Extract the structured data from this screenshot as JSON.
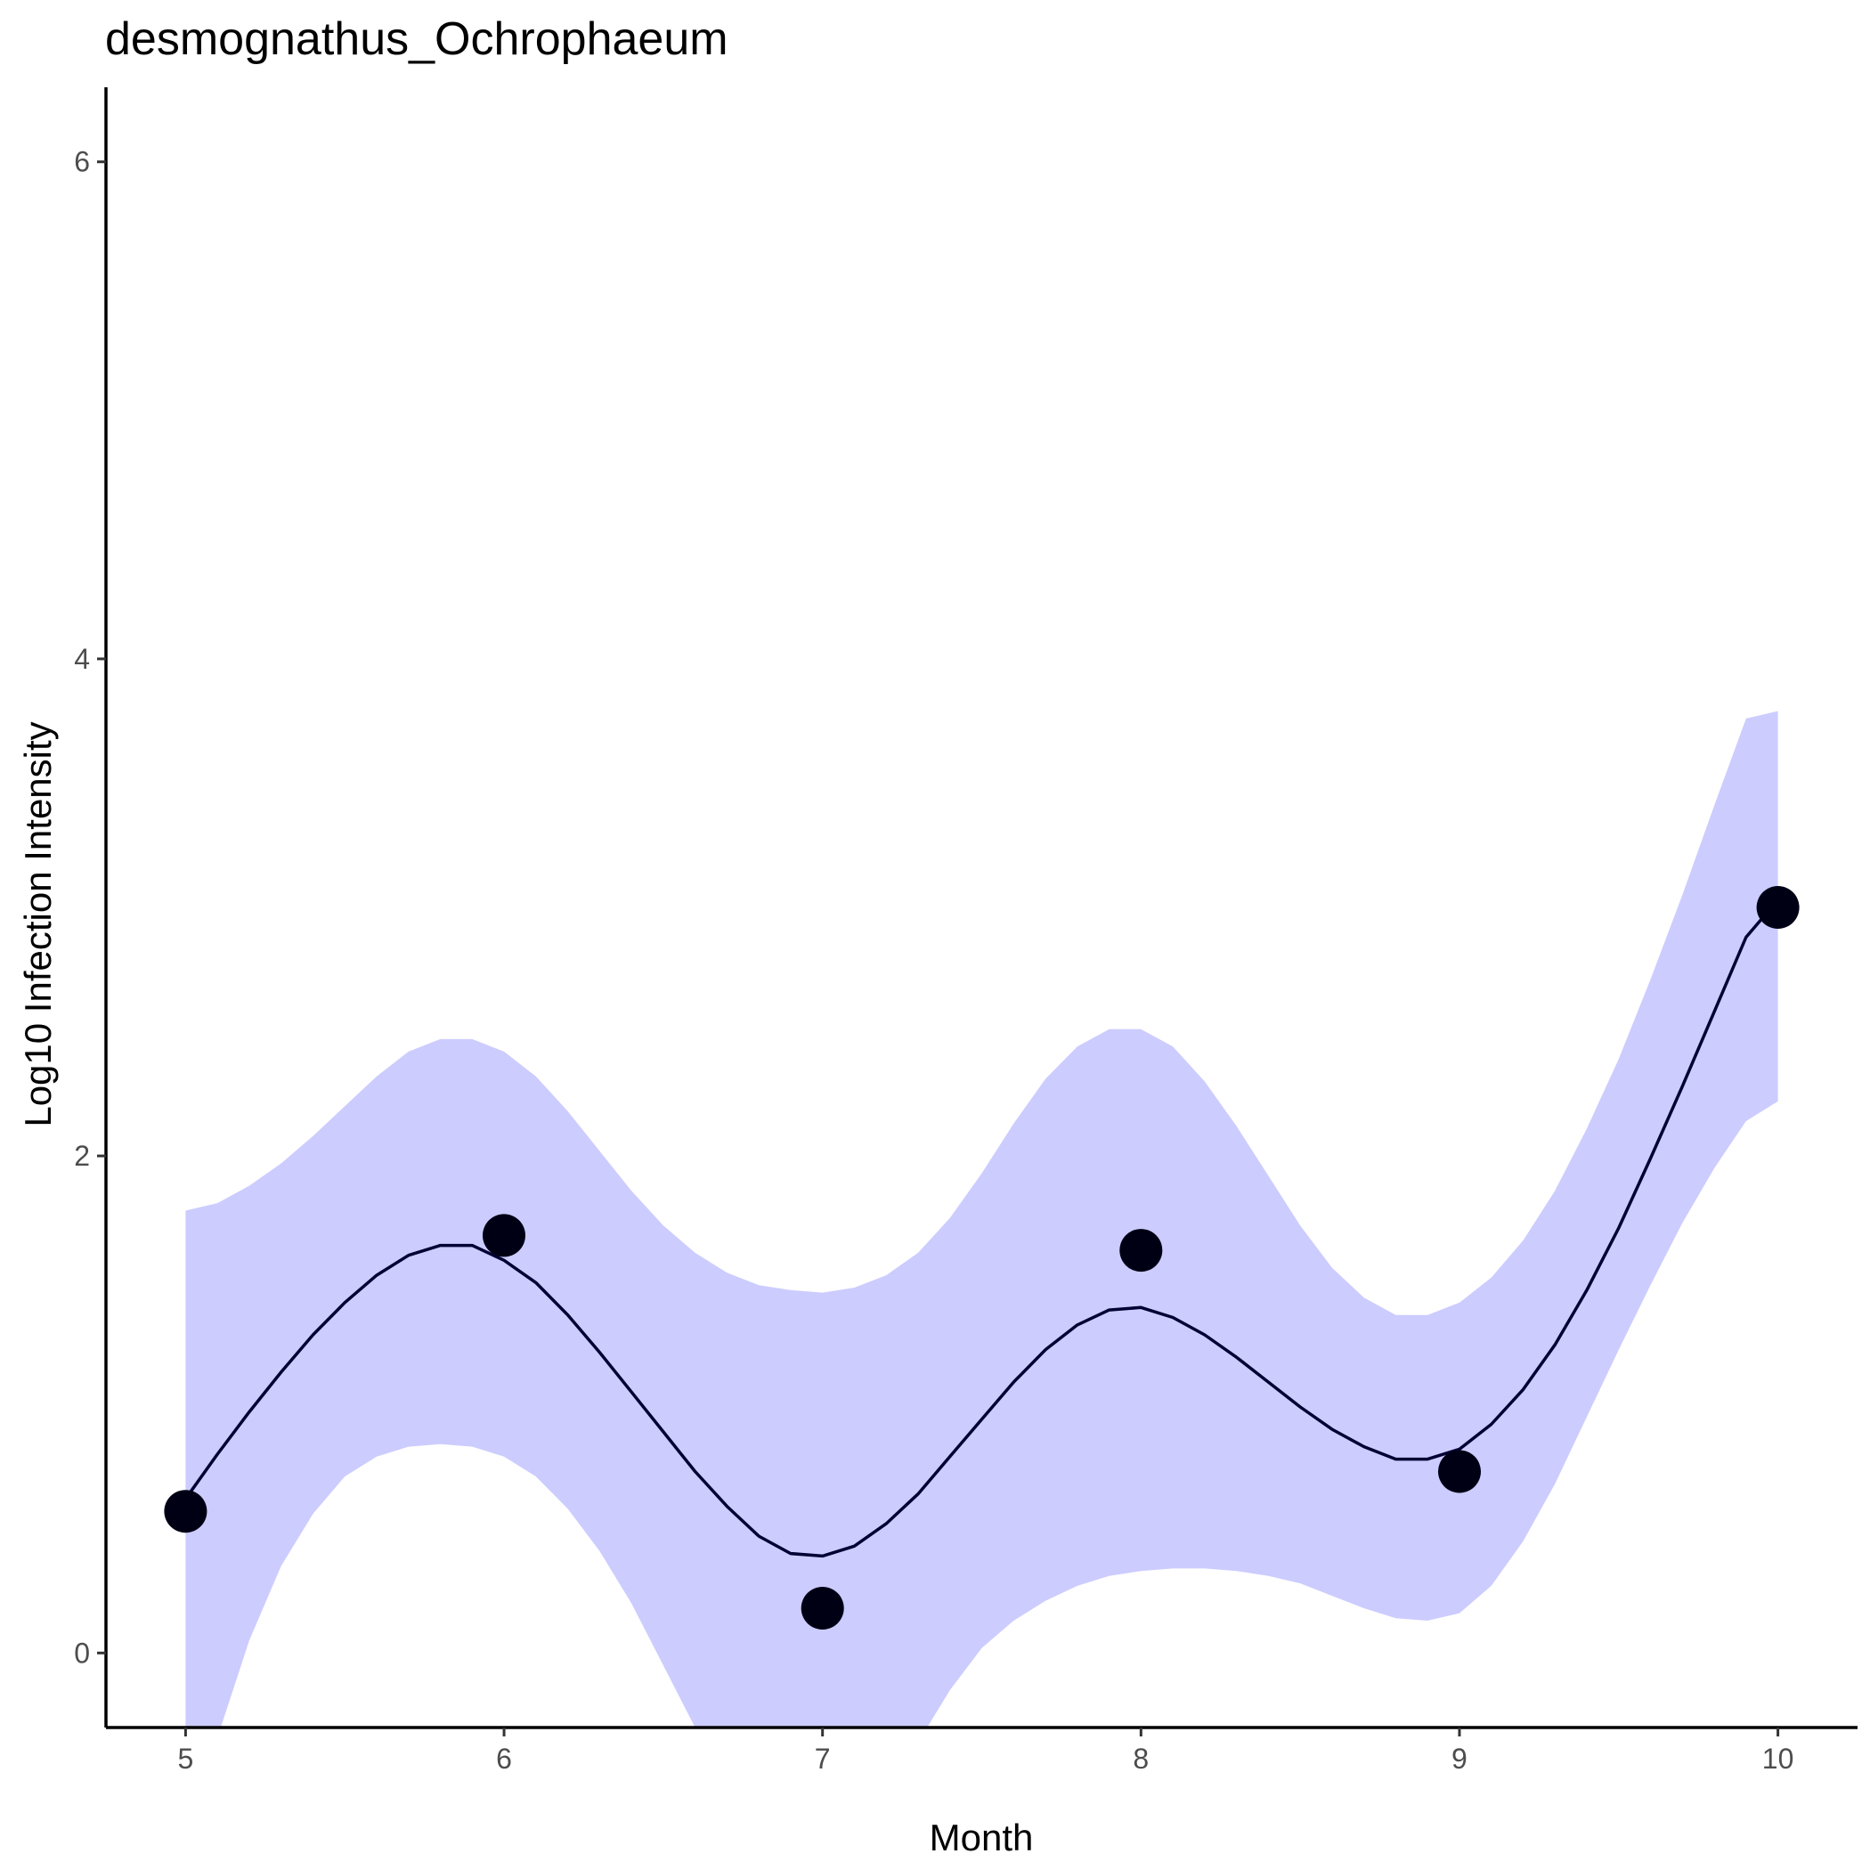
{
  "chart_data": {
    "type": "scatter",
    "title": "desmognathus_Ochrophaeum",
    "xlabel": "Month",
    "ylabel": "Log10 Infection Intensity",
    "xlim": [
      4.75,
      10.25
    ],
    "ylim": [
      -0.3,
      6.3
    ],
    "xticks": [
      5,
      6,
      7,
      8,
      9,
      10
    ],
    "yticks": [
      0,
      2,
      4,
      6
    ],
    "grid": false,
    "colors": {
      "points": "#000014",
      "fit_line": "#000033",
      "ribbon": "#ccccff"
    },
    "points": {
      "x": [
        5,
        6,
        7,
        8,
        9,
        10
      ],
      "y": [
        0.57,
        1.68,
        0.18,
        1.62,
        0.73,
        3.0
      ]
    },
    "smooth": {
      "x": [
        5.0,
        5.1,
        5.2,
        5.3,
        5.4,
        5.5,
        5.6,
        5.7,
        5.8,
        5.9,
        6.0,
        6.1,
        6.2,
        6.3,
        6.4,
        6.5,
        6.6,
        6.7,
        6.8,
        6.9,
        7.0,
        7.1,
        7.2,
        7.3,
        7.4,
        7.5,
        7.6,
        7.7,
        7.8,
        7.9,
        8.0,
        8.1,
        8.2,
        8.3,
        8.4,
        8.5,
        8.6,
        8.7,
        8.8,
        8.9,
        9.0,
        9.1,
        9.2,
        9.3,
        9.4,
        9.5,
        9.6,
        9.7,
        9.8,
        9.9,
        10.0
      ],
      "fit": [
        0.62,
        0.8,
        0.97,
        1.13,
        1.28,
        1.41,
        1.52,
        1.6,
        1.64,
        1.64,
        1.58,
        1.49,
        1.36,
        1.21,
        1.05,
        0.89,
        0.73,
        0.59,
        0.47,
        0.4,
        0.39,
        0.43,
        0.52,
        0.64,
        0.79,
        0.94,
        1.09,
        1.22,
        1.32,
        1.38,
        1.39,
        1.35,
        1.28,
        1.19,
        1.09,
        0.99,
        0.9,
        0.83,
        0.78,
        0.78,
        0.82,
        0.92,
        1.06,
        1.24,
        1.46,
        1.71,
        1.99,
        2.28,
        2.58,
        2.88,
        3.03
      ],
      "lower": [
        -0.5,
        -0.34,
        0.05,
        0.35,
        0.56,
        0.71,
        0.79,
        0.83,
        0.84,
        0.83,
        0.79,
        0.71,
        0.58,
        0.41,
        0.2,
        -0.05,
        -0.3,
        -0.52,
        -0.62,
        -0.6,
        -0.6,
        -0.58,
        -0.52,
        -0.36,
        -0.15,
        0.02,
        0.13,
        0.21,
        0.27,
        0.31,
        0.33,
        0.34,
        0.34,
        0.33,
        0.31,
        0.28,
        0.23,
        0.18,
        0.14,
        0.13,
        0.16,
        0.27,
        0.45,
        0.68,
        0.95,
        1.22,
        1.48,
        1.73,
        1.95,
        2.14,
        2.22
      ],
      "upper": [
        1.78,
        1.81,
        1.88,
        1.97,
        2.08,
        2.2,
        2.32,
        2.42,
        2.47,
        2.47,
        2.42,
        2.32,
        2.18,
        2.02,
        1.86,
        1.72,
        1.61,
        1.53,
        1.48,
        1.46,
        1.45,
        1.47,
        1.52,
        1.61,
        1.75,
        1.93,
        2.13,
        2.31,
        2.44,
        2.51,
        2.51,
        2.44,
        2.3,
        2.12,
        1.92,
        1.72,
        1.55,
        1.43,
        1.36,
        1.36,
        1.41,
        1.51,
        1.66,
        1.86,
        2.11,
        2.39,
        2.71,
        3.05,
        3.41,
        3.76,
        3.79
      ]
    }
  }
}
